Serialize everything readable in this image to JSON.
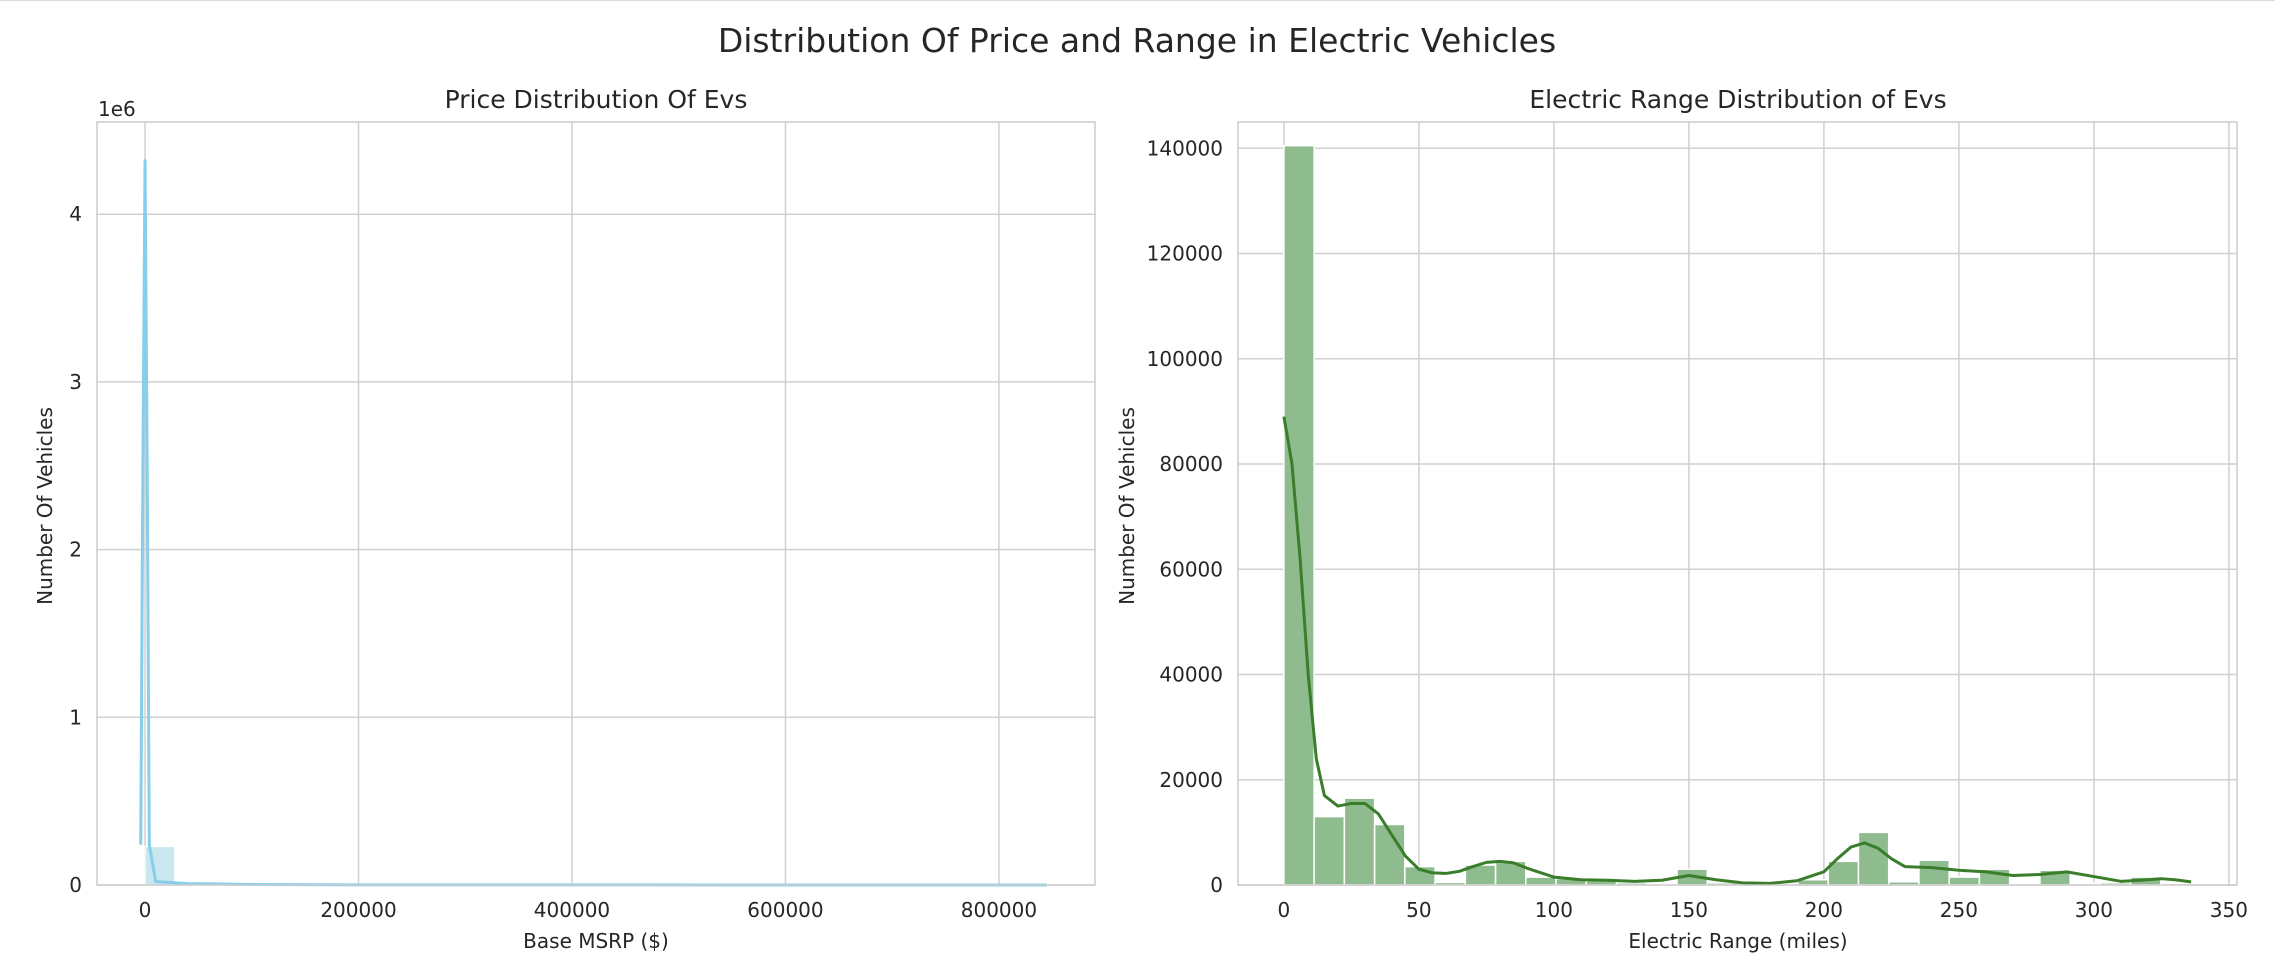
{
  "figure": {
    "title": "Distribution Of Price and Range in Electric Vehicles"
  },
  "chart_data": [
    {
      "type": "bar",
      "title": "Price Distribution Of Evs",
      "xlabel": "Base MSRP ($)",
      "ylabel": "Number Of Vehicles",
      "y_offset_text": "1e6",
      "xlim": [
        -45000,
        890000
      ],
      "ylim": [
        0,
        4550000
      ],
      "xticks": [
        0,
        200000,
        400000,
        600000,
        800000
      ],
      "xtick_labels": [
        "0",
        "200000",
        "400000",
        "600000",
        "800000"
      ],
      "yticks": [
        0,
        1000000,
        2000000,
        3000000,
        4000000
      ],
      "ytick_labels": [
        "0",
        "1",
        "2",
        "3",
        "4"
      ],
      "grid": true,
      "bar_color": "#add8e6",
      "kde_color": "#87ceeb",
      "bins": [
        {
          "x0": 0,
          "x1": 28000,
          "count": 230000
        },
        {
          "x0": 28000,
          "x1": 56000,
          "count": 600
        },
        {
          "x0": 56000,
          "x1": 84000,
          "count": 2200
        },
        {
          "x0": 84000,
          "x1": 112000,
          "count": 300
        },
        {
          "x0": 112000,
          "x1": 140000,
          "count": 100
        },
        {
          "x0": 168000,
          "x1": 196000,
          "count": 50
        },
        {
          "x0": 840000,
          "x1": 868000,
          "count": 10
        }
      ],
      "kde": [
        [
          -4000,
          240000
        ],
        [
          -2000,
          2500000
        ],
        [
          0,
          4320000
        ],
        [
          2000,
          2500000
        ],
        [
          4000,
          240000
        ],
        [
          10000,
          20000
        ],
        [
          40000,
          8000
        ],
        [
          70000,
          6000
        ],
        [
          100000,
          3000
        ],
        [
          200000,
          1000
        ],
        [
          400000,
          500
        ],
        [
          600000,
          300
        ],
        [
          845000,
          200
        ]
      ]
    },
    {
      "type": "bar",
      "title": "Electric Range Distribution of Evs",
      "xlabel": "Electric Range (miles)",
      "ylabel": "Number Of Vehicles",
      "xlim": [
        -17,
        353
      ],
      "ylim": [
        0,
        145000
      ],
      "xticks": [
        0,
        50,
        100,
        150,
        200,
        250,
        300,
        350
      ],
      "xtick_labels": [
        "0",
        "50",
        "100",
        "150",
        "200",
        "250",
        "300",
        "350"
      ],
      "yticks": [
        0,
        20000,
        40000,
        60000,
        80000,
        100000,
        120000,
        140000
      ],
      "ytick_labels": [
        "0",
        "20000",
        "40000",
        "60000",
        "80000",
        "100000",
        "120000",
        "140000"
      ],
      "grid": true,
      "bar_color": "#8fbc8f",
      "kde_color": "#3a7d2a",
      "bin_width": 11.2,
      "counts": [
        140500,
        13000,
        16500,
        11500,
        3500,
        500,
        3800,
        4500,
        1500,
        1200,
        800,
        400,
        200,
        3000,
        400,
        200,
        200,
        1000,
        4500,
        10000,
        600,
        4700,
        1500,
        3000,
        300,
        2800,
        300,
        400,
        1500,
        300
      ],
      "kde": [
        [
          0,
          89000
        ],
        [
          3,
          80000
        ],
        [
          6,
          62000
        ],
        [
          9,
          40000
        ],
        [
          12,
          24000
        ],
        [
          15,
          17000
        ],
        [
          20,
          15000
        ],
        [
          25,
          15500
        ],
        [
          30,
          15500
        ],
        [
          35,
          13500
        ],
        [
          40,
          9500
        ],
        [
          45,
          5500
        ],
        [
          50,
          3000
        ],
        [
          55,
          2300
        ],
        [
          60,
          2200
        ],
        [
          65,
          2600
        ],
        [
          70,
          3500
        ],
        [
          75,
          4300
        ],
        [
          80,
          4500
        ],
        [
          85,
          4200
        ],
        [
          90,
          3200
        ],
        [
          100,
          1500
        ],
        [
          110,
          1000
        ],
        [
          120,
          900
        ],
        [
          130,
          700
        ],
        [
          140,
          900
        ],
        [
          150,
          1800
        ],
        [
          160,
          1000
        ],
        [
          170,
          400
        ],
        [
          180,
          300
        ],
        [
          190,
          800
        ],
        [
          200,
          2500
        ],
        [
          205,
          5000
        ],
        [
          210,
          7200
        ],
        [
          215,
          8000
        ],
        [
          220,
          7000
        ],
        [
          225,
          5000
        ],
        [
          230,
          3500
        ],
        [
          240,
          3300
        ],
        [
          250,
          2800
        ],
        [
          260,
          2500
        ],
        [
          270,
          1800
        ],
        [
          280,
          2000
        ],
        [
          290,
          2500
        ],
        [
          300,
          1600
        ],
        [
          310,
          700
        ],
        [
          320,
          1000
        ],
        [
          325,
          1200
        ],
        [
          330,
          1000
        ],
        [
          336,
          600
        ]
      ]
    }
  ]
}
